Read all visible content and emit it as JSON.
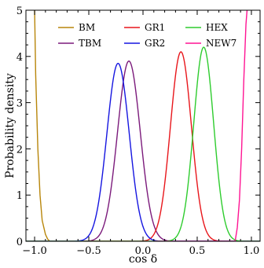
{
  "chart_data": {
    "type": "line",
    "xlabel": "cos δ",
    "ylabel": "Probability density",
    "xlim": [
      -1.08,
      1.08
    ],
    "ylim": [
      0,
      5
    ],
    "x_ticks": [
      -1.0,
      -0.5,
      0.0,
      0.5,
      1.0
    ],
    "x_tick_labels": [
      "−1.0",
      "−0.5",
      "0.0",
      "0.5",
      "1.0"
    ],
    "y_ticks": [
      0,
      1,
      2,
      3,
      4,
      5
    ],
    "y_tick_labels": [
      "0",
      "1",
      "2",
      "3",
      "4",
      "5"
    ],
    "grid": false,
    "legend_position": "top",
    "legend_columns": 3,
    "series": [
      {
        "name": "BM",
        "color": "#b8860b",
        "shape": "left-edge rising",
        "x": [
          -1.0,
          -0.99,
          -0.97,
          -0.95,
          -0.93,
          -0.9,
          -0.88,
          -0.86
        ],
        "y": [
          5.0,
          3.6,
          2.0,
          1.0,
          0.45,
          0.15,
          0.05,
          0.0
        ]
      },
      {
        "name": "TBM",
        "color": "#7b1a7b",
        "shape": "peak",
        "peak_x": -0.13,
        "peak_y": 3.9,
        "width": 0.105
      },
      {
        "name": "GR1",
        "color": "#e8161b",
        "shape": "peak",
        "peak_x": 0.35,
        "peak_y": 4.1,
        "width": 0.097
      },
      {
        "name": "GR2",
        "color": "#1515e0",
        "shape": "peak",
        "peak_x": -0.23,
        "peak_y": 3.85,
        "width": 0.103
      },
      {
        "name": "HEX",
        "color": "#2ecc2e",
        "shape": "peak",
        "peak_x": 0.56,
        "peak_y": 4.2,
        "width": 0.092
      },
      {
        "name": "NEW7",
        "color": "#ff1493",
        "shape": "right-edge rising",
        "x": [
          0.85,
          0.87,
          0.89,
          0.91,
          0.93,
          0.95,
          0.96
        ],
        "y": [
          0.0,
          0.3,
          0.9,
          2.0,
          3.5,
          4.7,
          5.0
        ]
      }
    ]
  }
}
